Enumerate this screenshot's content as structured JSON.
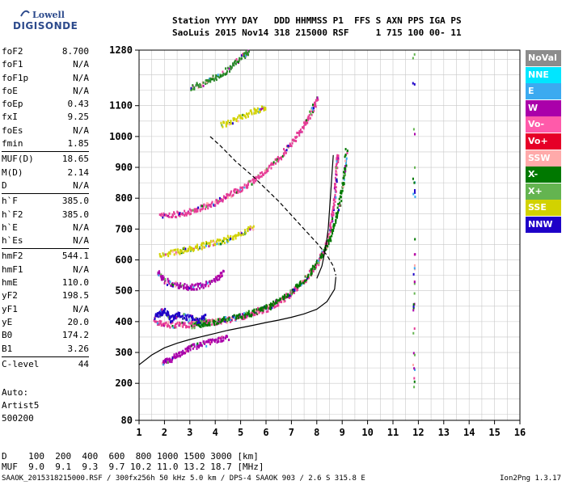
{
  "logo": {
    "line1": "Lowell",
    "line2": "DIGISONDE"
  },
  "header": {
    "row1": "Station YYYY DAY   DDD HHMMSS P1  FFS S AXN PPS IGA PS",
    "row2": "SaoLuis 2015 Nov14 318 215000 RSF     1 715 100 00- 11"
  },
  "params": [
    [
      {
        "k": "foF2",
        "v": "8.700"
      },
      {
        "k": "foF1",
        "v": "N/A"
      },
      {
        "k": "foF1p",
        "v": "N/A"
      },
      {
        "k": "foE",
        "v": "N/A"
      },
      {
        "k": "foEp",
        "v": "0.43"
      },
      {
        "k": "fxI",
        "v": "9.25"
      },
      {
        "k": "foEs",
        "v": "N/A"
      },
      {
        "k": "fmin",
        "v": "1.85"
      }
    ],
    [
      {
        "k": "MUF(D)",
        "v": "18.65"
      },
      {
        "k": "M(D)",
        "v": "2.14"
      },
      {
        "k": "D",
        "v": "N/A"
      }
    ],
    [
      {
        "k": "h`F",
        "v": "385.0"
      },
      {
        "k": "h`F2",
        "v": "385.0"
      },
      {
        "k": "h`E",
        "v": "N/A"
      },
      {
        "k": "h`Es",
        "v": "N/A"
      }
    ],
    [
      {
        "k": "hmF2",
        "v": "544.1"
      },
      {
        "k": "hmF1",
        "v": "N/A"
      },
      {
        "k": "hmE",
        "v": "110.0"
      },
      {
        "k": "yF2",
        "v": "198.5"
      },
      {
        "k": "yF1",
        "v": "N/A"
      },
      {
        "k": "yE",
        "v": "20.0"
      },
      {
        "k": "B0",
        "v": "174.2"
      },
      {
        "k": "B1",
        "v": "3.26"
      }
    ],
    [
      {
        "k": "C-level",
        "v": "44"
      }
    ]
  ],
  "auto": {
    "line1": "Auto:",
    "line2": "Artist5",
    "line3": "500200"
  },
  "bottom": {
    "d_row": "D    100  200  400  600  800 1000 1500 3000 [km]",
    "muf_row": "MUF  9.0  9.1  9.3  9.7 10.2 11.0 13.2 18.7 [MHz]"
  },
  "footer": {
    "left": "SAAOK_2015318215000.RSF / 300fx256h 50 kHz 5.0 km / DPS-4 SAAOK 903 / 2.6 S 315.8 E",
    "right": "Ion2Png 1.3.17"
  },
  "legend": [
    {
      "label": "NoVal",
      "color": "#8c8c8c"
    },
    {
      "label": "NNE",
      "color": "#00e6ff"
    },
    {
      "label": "E",
      "color": "#3caaf0"
    },
    {
      "label": "W",
      "color": "#aa00aa"
    },
    {
      "label": "Vo-",
      "color": "#ff5aaa"
    },
    {
      "label": "Vo+",
      "color": "#e60028"
    },
    {
      "label": "SSW",
      "color": "#ffaaaa"
    },
    {
      "label": "X-",
      "color": "#007800"
    },
    {
      "label": "X+",
      "color": "#64b450"
    },
    {
      "label": "SSE",
      "color": "#d2d200"
    },
    {
      "label": "NNW",
      "color": "#1e00c8"
    }
  ],
  "chart_data": {
    "type": "scatter",
    "xlabel": "",
    "ylabel": "",
    "xlim": [
      1,
      16
    ],
    "ylim": [
      80,
      1280
    ],
    "x_ticks": [
      1,
      2,
      3,
      4,
      5,
      6,
      7,
      8,
      9,
      10,
      11,
      12,
      13,
      14,
      15,
      16
    ],
    "y_ticks": [
      80,
      200,
      300,
      400,
      500,
      600,
      700,
      800,
      900,
      1000,
      1100,
      1280
    ],
    "grid": true,
    "grid_minor_x": 0.5,
    "grid_minor_y": 50,
    "traces": [
      {
        "name": "F2 O-trace",
        "color": "#e63c96",
        "points": [
          [
            1.6,
            400
          ],
          [
            2.0,
            395
          ],
          [
            2.5,
            393
          ],
          [
            3.0,
            395
          ],
          [
            3.5,
            398
          ],
          [
            4.0,
            403
          ],
          [
            4.5,
            410
          ],
          [
            5.0,
            418
          ],
          [
            5.5,
            430
          ],
          [
            6.0,
            445
          ],
          [
            6.5,
            465
          ],
          [
            7.0,
            495
          ],
          [
            7.5,
            535
          ],
          [
            8.0,
            590
          ],
          [
            8.3,
            640
          ],
          [
            8.5,
            700
          ],
          [
            8.6,
            760
          ],
          [
            8.7,
            830
          ],
          [
            8.75,
            900
          ],
          [
            8.8,
            950
          ]
        ]
      },
      {
        "name": "F2 X-trace",
        "color": "#007800",
        "points": [
          [
            3.0,
            390
          ],
          [
            3.5,
            396
          ],
          [
            4.0,
            402
          ],
          [
            4.5,
            412
          ],
          [
            5.0,
            422
          ],
          [
            5.5,
            434
          ],
          [
            6.0,
            450
          ],
          [
            6.5,
            472
          ],
          [
            7.0,
            500
          ],
          [
            7.5,
            540
          ],
          [
            8.0,
            595
          ],
          [
            8.4,
            650
          ],
          [
            8.7,
            720
          ],
          [
            8.9,
            800
          ],
          [
            9.05,
            880
          ],
          [
            9.15,
            960
          ]
        ]
      },
      {
        "name": "2F2 trace",
        "color": "#e63c96",
        "points": [
          [
            1.8,
            745
          ],
          [
            2.5,
            752
          ],
          [
            3.0,
            760
          ],
          [
            3.5,
            775
          ],
          [
            4.0,
            790
          ],
          [
            4.5,
            810
          ],
          [
            5.0,
            835
          ],
          [
            5.5,
            860
          ],
          [
            6.0,
            895
          ],
          [
            6.5,
            935
          ],
          [
            7.0,
            985
          ],
          [
            7.5,
            1040
          ],
          [
            7.8,
            1090
          ],
          [
            8.0,
            1130
          ]
        ]
      },
      {
        "name": "3F2 trace",
        "color": "#2e8b2e",
        "points": [
          [
            3.0,
            1160
          ],
          [
            3.5,
            1175
          ],
          [
            4.0,
            1195
          ],
          [
            4.5,
            1220
          ],
          [
            5.0,
            1260
          ],
          [
            5.3,
            1280
          ]
        ]
      },
      {
        "name": "Es multiple",
        "color": "#d2d200",
        "points": [
          [
            1.8,
            620
          ],
          [
            2.5,
            630
          ],
          [
            3.0,
            640
          ],
          [
            3.5,
            650
          ],
          [
            4.0,
            660
          ],
          [
            4.5,
            672
          ],
          [
            5.0,
            690
          ],
          [
            5.5,
            710
          ]
        ]
      },
      {
        "name": "SSE high",
        "color": "#d2d200",
        "points": [
          [
            4.2,
            1040
          ],
          [
            4.8,
            1060
          ],
          [
            5.5,
            1085
          ],
          [
            6.0,
            1100
          ]
        ]
      },
      {
        "name": "W spread",
        "color": "#aa00aa",
        "points": [
          [
            1.7,
            560
          ],
          [
            2.0,
            535
          ],
          [
            2.5,
            520
          ],
          [
            3.0,
            515
          ],
          [
            3.5,
            520
          ],
          [
            4.0,
            540
          ],
          [
            4.3,
            560
          ]
        ]
      },
      {
        "name": "NNW low",
        "color": "#1e00c8",
        "points": [
          [
            1.6,
            420
          ],
          [
            1.8,
            430
          ],
          [
            2.0,
            440
          ],
          [
            2.2,
            410
          ],
          [
            2.5,
            425
          ],
          [
            3.0,
            415
          ],
          [
            3.3,
            405
          ],
          [
            3.6,
            420
          ]
        ]
      },
      {
        "name": "low trace",
        "color": "#aa00aa",
        "points": [
          [
            1.9,
            270
          ],
          [
            2.2,
            280
          ],
          [
            2.6,
            300
          ],
          [
            3.0,
            320
          ],
          [
            3.5,
            330
          ],
          [
            4.0,
            345
          ],
          [
            4.5,
            350
          ]
        ]
      }
    ],
    "profile_solid": [
      [
        1.0,
        260
      ],
      [
        1.5,
        292
      ],
      [
        2.0,
        315
      ],
      [
        2.5,
        330
      ],
      [
        3.0,
        342
      ],
      [
        3.5,
        352
      ],
      [
        4.0,
        362
      ],
      [
        4.5,
        372
      ],
      [
        5.0,
        380
      ],
      [
        5.5,
        388
      ],
      [
        6.0,
        397
      ],
      [
        6.5,
        405
      ],
      [
        7.0,
        414
      ],
      [
        7.5,
        425
      ],
      [
        8.0,
        440
      ],
      [
        8.4,
        465
      ],
      [
        8.7,
        505
      ],
      [
        8.75,
        545
      ]
    ],
    "profile_solid_upper": [
      [
        8.0,
        540
      ],
      [
        8.2,
        580
      ],
      [
        8.35,
        640
      ],
      [
        8.45,
        700
      ],
      [
        8.5,
        760
      ],
      [
        8.55,
        820
      ],
      [
        8.6,
        880
      ],
      [
        8.65,
        940
      ]
    ],
    "profile_dashed": [
      [
        3.8,
        1000
      ],
      [
        4.2,
        970
      ],
      [
        4.8,
        920
      ],
      [
        5.5,
        870
      ],
      [
        6.0,
        830
      ],
      [
        6.5,
        790
      ],
      [
        7.0,
        745
      ],
      [
        7.5,
        700
      ],
      [
        8.0,
        655
      ],
      [
        8.4,
        615
      ],
      [
        8.65,
        580
      ],
      [
        8.75,
        550
      ]
    ],
    "right_column_x": 11.8
  }
}
